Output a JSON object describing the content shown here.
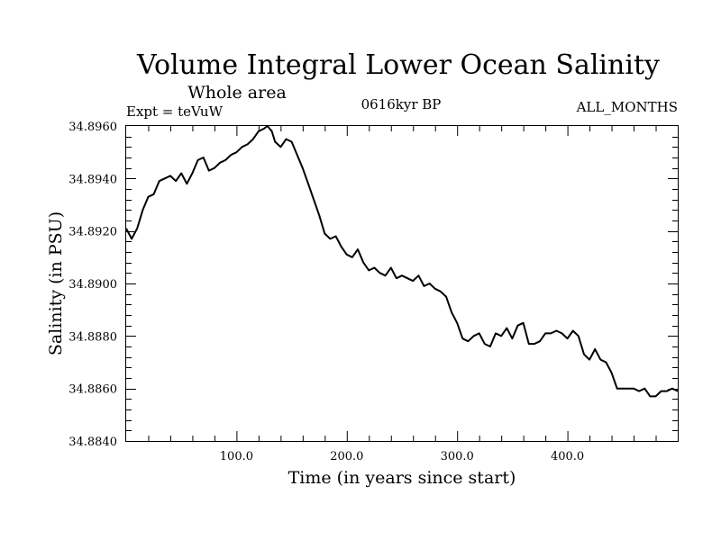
{
  "header": {
    "title": "Volume Integral Lower Ocean Salinity",
    "subtitle": "Whole area",
    "experiment": "Expt = teVuW",
    "period": "0616kyr BP",
    "months": "ALL_MONTHS"
  },
  "chart_data": {
    "type": "line",
    "xlabel": "Time (in years since start)",
    "ylabel": "Salinity (in PSU)",
    "xlim": [
      0,
      500
    ],
    "ylim": [
      34.884,
      34.896
    ],
    "x_ticks": [
      100,
      200,
      300,
      400
    ],
    "x_tick_labels": [
      "100.0",
      "200.0",
      "300.0",
      "400.0"
    ],
    "y_ticks": [
      34.884,
      34.886,
      34.888,
      34.89,
      34.892,
      34.894,
      34.896
    ],
    "y_tick_labels": [
      "34.8840",
      "34.8860",
      "34.8880",
      "34.8900",
      "34.8920",
      "34.8940",
      "34.8960"
    ],
    "grid": false,
    "line_color": "#000000",
    "series": [
      {
        "x": [
          0,
          5,
          10,
          15,
          20,
          25,
          30,
          35,
          40,
          45,
          50,
          55,
          60,
          65,
          70,
          75,
          80,
          85,
          90,
          95,
          100,
          105,
          110,
          115,
          120,
          125,
          128,
          132,
          135,
          140,
          145,
          150,
          155,
          160,
          165,
          170,
          175,
          180,
          185,
          190,
          195,
          200,
          205,
          210,
          215,
          220,
          225,
          230,
          235,
          240,
          245,
          250,
          255,
          260,
          265,
          270,
          275,
          280,
          285,
          290,
          295,
          300,
          305,
          310,
          315,
          320,
          325,
          330,
          335,
          340,
          345,
          350,
          355,
          360,
          365,
          370,
          375,
          380,
          385,
          390,
          395,
          400,
          405,
          410,
          415,
          420,
          425,
          430,
          435,
          440,
          445,
          450,
          455,
          460,
          465,
          470,
          475,
          480,
          485,
          490,
          495,
          500
        ],
        "values": [
          34.8921,
          34.8917,
          34.8921,
          34.8928,
          34.8933,
          34.8934,
          34.8939,
          34.894,
          34.8941,
          34.8939,
          34.8942,
          34.8938,
          34.8942,
          34.8947,
          34.8948,
          34.8943,
          34.8944,
          34.8946,
          34.8947,
          34.8949,
          34.895,
          34.8952,
          34.8953,
          34.8955,
          34.8958,
          34.8959,
          34.896,
          34.8958,
          34.8954,
          34.8952,
          34.8955,
          34.8954,
          34.8949,
          34.8944,
          34.8938,
          34.8932,
          34.8926,
          34.8919,
          34.8917,
          34.8918,
          34.8914,
          34.8911,
          34.891,
          34.8913,
          34.8908,
          34.8905,
          34.8906,
          34.8904,
          34.8903,
          34.8906,
          34.8902,
          34.8903,
          34.8902,
          34.8901,
          34.8903,
          34.8899,
          34.89,
          34.8898,
          34.8897,
          34.8895,
          34.8889,
          34.8885,
          34.8879,
          34.8878,
          34.888,
          34.8881,
          34.8877,
          34.8876,
          34.8881,
          34.888,
          34.8883,
          34.8879,
          34.8884,
          34.8885,
          34.8877,
          34.8877,
          34.8878,
          34.8881,
          34.8881,
          34.8882,
          34.8881,
          34.8879,
          34.8882,
          34.888,
          34.8873,
          34.8871,
          34.8875,
          34.8871,
          34.887,
          34.8866,
          34.886,
          34.886,
          34.886,
          34.886,
          34.8859,
          34.886,
          34.8857,
          34.8857,
          34.8859,
          34.8859,
          34.886,
          34.8859
        ]
      }
    ]
  }
}
